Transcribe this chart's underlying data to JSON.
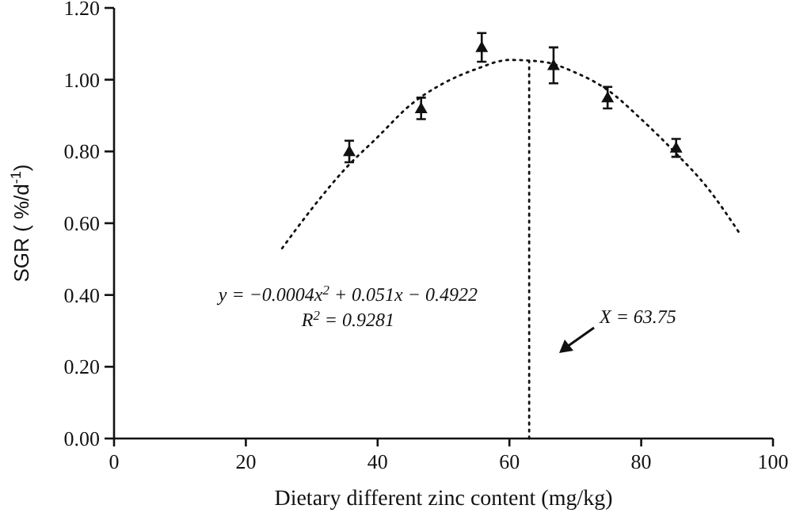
{
  "chart_data": {
    "type": "scatter",
    "xlabel": "Dietary different zinc content (mg/kg)",
    "ylabel": "SGR ( %/d$^{-1}$)",
    "xlim": [
      0,
      100
    ],
    "xticks": [
      0,
      20,
      40,
      60,
      80,
      100
    ],
    "ylim": [
      0,
      1.2
    ],
    "yticks": [
      {
        "value": 0,
        "label": "0.00"
      },
      {
        "value": 0.2,
        "label": "0.20"
      },
      {
        "value": 0.4,
        "label": "0.40"
      },
      {
        "value": 0.6,
        "label": "0.60"
      },
      {
        "value": 0.8,
        "label": "0.80"
      },
      {
        "value": 1,
        "label": "1.00"
      },
      {
        "value": 1.2,
        "label": "1.20"
      }
    ],
    "grid": false,
    "series": [
      {
        "color": "#111111",
        "marker": "triangle",
        "x": [
          35.7,
          46.6,
          55.8,
          66.7,
          74.9,
          85.3
        ],
        "values": [
          0.8,
          0.92,
          1.09,
          1.04,
          0.95,
          0.81
        ],
        "errors": [
          0.03,
          0.03,
          0.04,
          0.05,
          0.03,
          0.025
        ]
      },
      {
        "type": "line",
        "color": "#111111",
        "line_style": "dotted",
        "marker": "none",
        "x": [
          25.5,
          30,
          35,
          40,
          45,
          50,
          55,
          60,
          65,
          70,
          75,
          80,
          85,
          90,
          95
        ],
        "values": [
          0.53,
          0.64,
          0.75,
          0.84,
          0.93,
          0.99,
          1.03,
          1.055,
          1.05,
          1.02,
          0.97,
          0.89,
          0.8,
          0.7,
          0.57
        ]
      }
    ],
    "ref_lines": [
      {
        "axis": "x",
        "value": 63,
        "color": "#111111",
        "line_style": "dotted"
      }
    ],
    "annotations": [
      "y = −0.0004x$^{2}$ + 0.051x − 0.4922",
      "R$^{2}$ = 0.9281",
      "X = 63.75"
    ]
  }
}
